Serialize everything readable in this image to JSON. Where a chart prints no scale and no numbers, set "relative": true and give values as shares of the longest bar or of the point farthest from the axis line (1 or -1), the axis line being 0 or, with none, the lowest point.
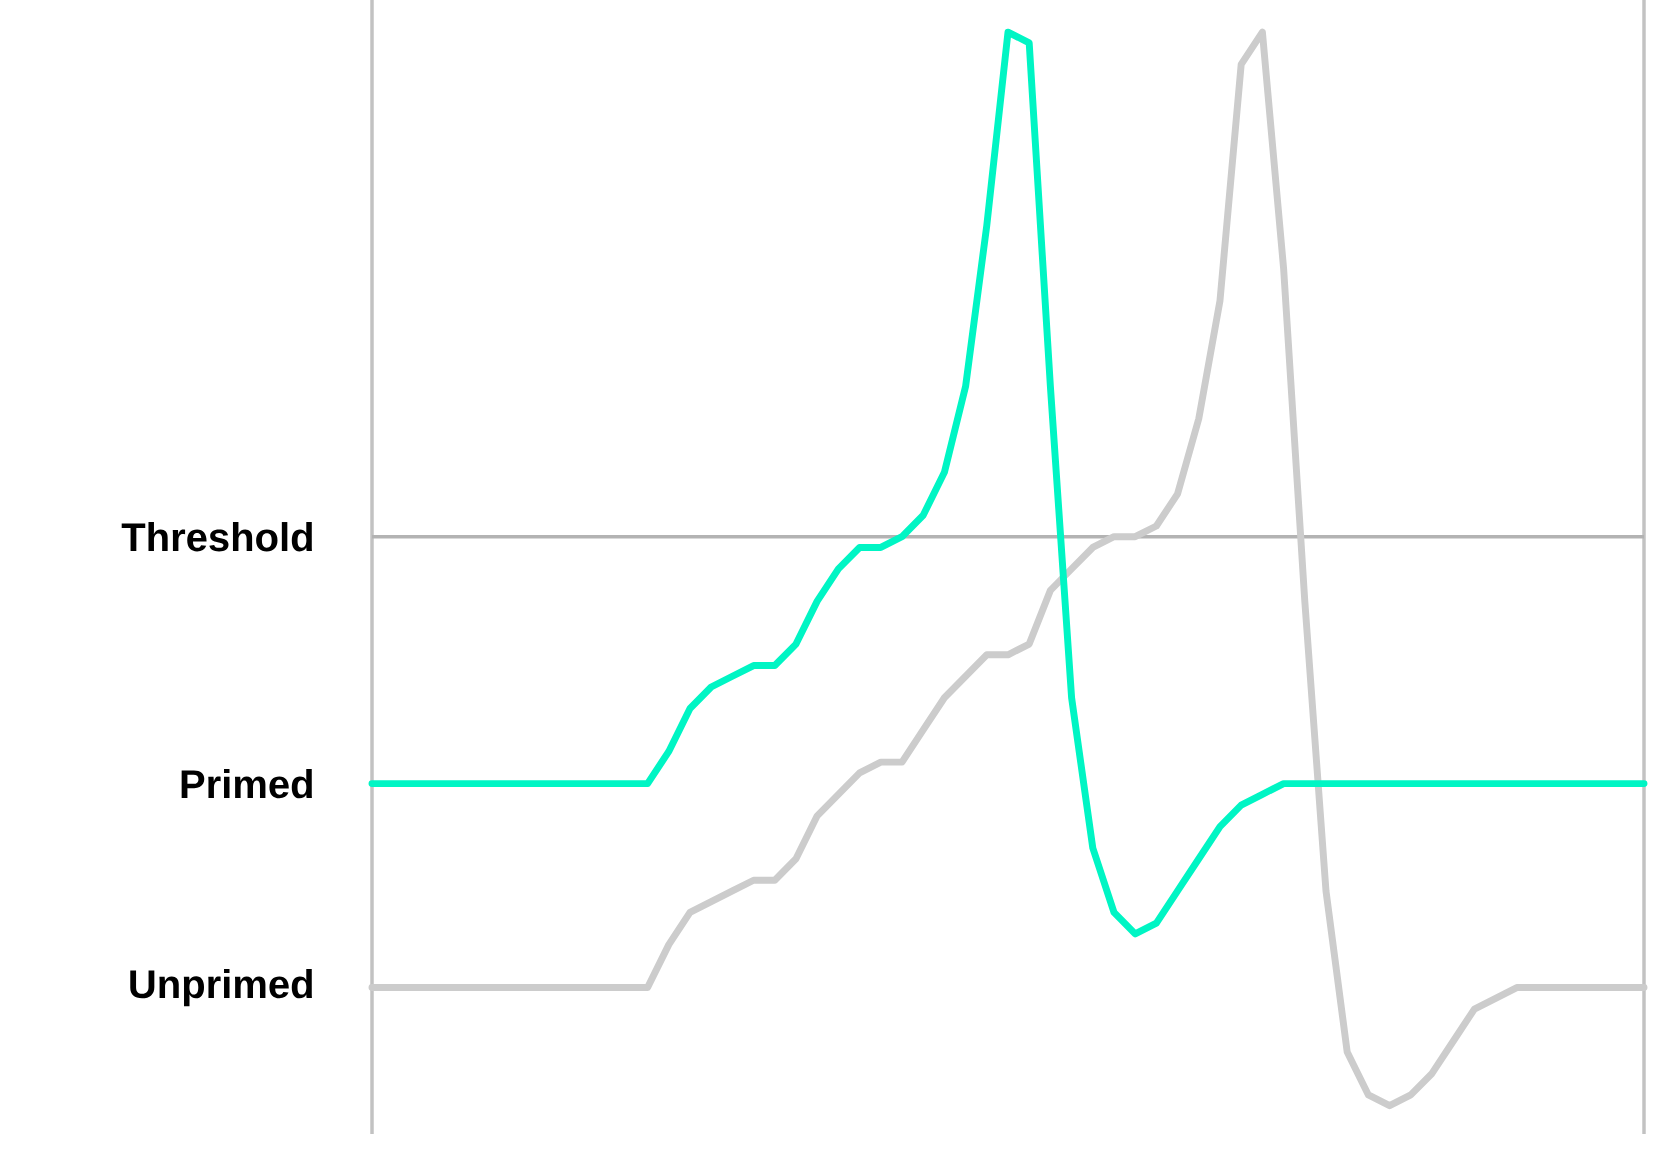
{
  "chart_data": {
    "type": "line",
    "relative": true,
    "categories": [
      null,
      null,
      null,
      null,
      null,
      null,
      null,
      null,
      null,
      null,
      null,
      null,
      null,
      null,
      null,
      null,
      null,
      null,
      null,
      null,
      null,
      null,
      null,
      null,
      null,
      null,
      null,
      null,
      null,
      null,
      null,
      null,
      null,
      null,
      null,
      null,
      null,
      null,
      null,
      null,
      null,
      null,
      null,
      null,
      null,
      null,
      null,
      null,
      null,
      null,
      null,
      null,
      null,
      null,
      null,
      null,
      null,
      null,
      null,
      null,
      null
    ],
    "series": [
      {
        "color": "#cccccc",
        "values": [
          0.11,
          0.11,
          0.11,
          0.11,
          0.11,
          0.11,
          0.11,
          0.11,
          0.11,
          0.11,
          0.11,
          0.11,
          0.11,
          0.11,
          0.15,
          0.18,
          0.19,
          0.2,
          0.21,
          0.21,
          0.23,
          0.27,
          0.29,
          0.31,
          0.32,
          0.32,
          0.35,
          0.38,
          0.4,
          0.42,
          0.42,
          0.43,
          0.48,
          0.5,
          0.52,
          0.53,
          0.53,
          0.54,
          0.57,
          0.64,
          0.75,
          0.97,
          1.0,
          0.78,
          0.47,
          0.2,
          0.05,
          0.01,
          0,
          0.01,
          0.03,
          0.06,
          0.09,
          0.1,
          0.11,
          0.11,
          0.11,
          0.11,
          0.11,
          0.11,
          0.11
        ]
      },
      {
        "color": "#00f5c4",
        "values": [
          0.3,
          0.3,
          0.3,
          0.3,
          0.3,
          0.3,
          0.3,
          0.3,
          0.3,
          0.3,
          0.3,
          0.3,
          0.3,
          0.3,
          0.33,
          0.37,
          0.39,
          0.4,
          0.41,
          0.41,
          0.43,
          0.47,
          0.5,
          0.52,
          0.52,
          0.53,
          0.55,
          0.59,
          0.67,
          0.82,
          1.0,
          0.99,
          0.67,
          0.38,
          0.24,
          0.18,
          0.16,
          0.17,
          0.2,
          0.23,
          0.26,
          0.28,
          0.29,
          0.3,
          0.3,
          0.3,
          0.3,
          0.3,
          0.3,
          0.3,
          0.3,
          0.3,
          0.3,
          0.3,
          0.3,
          0.3,
          0.3,
          0.3,
          0.3,
          0.3,
          0.3
        ]
      }
    ],
    "ref_lines": [
      {
        "axis": "y",
        "value": 0.53,
        "label": "Threshold",
        "color": "#b3b3b3"
      }
    ],
    "annotations": [
      "Primed",
      "Unprimed"
    ]
  }
}
